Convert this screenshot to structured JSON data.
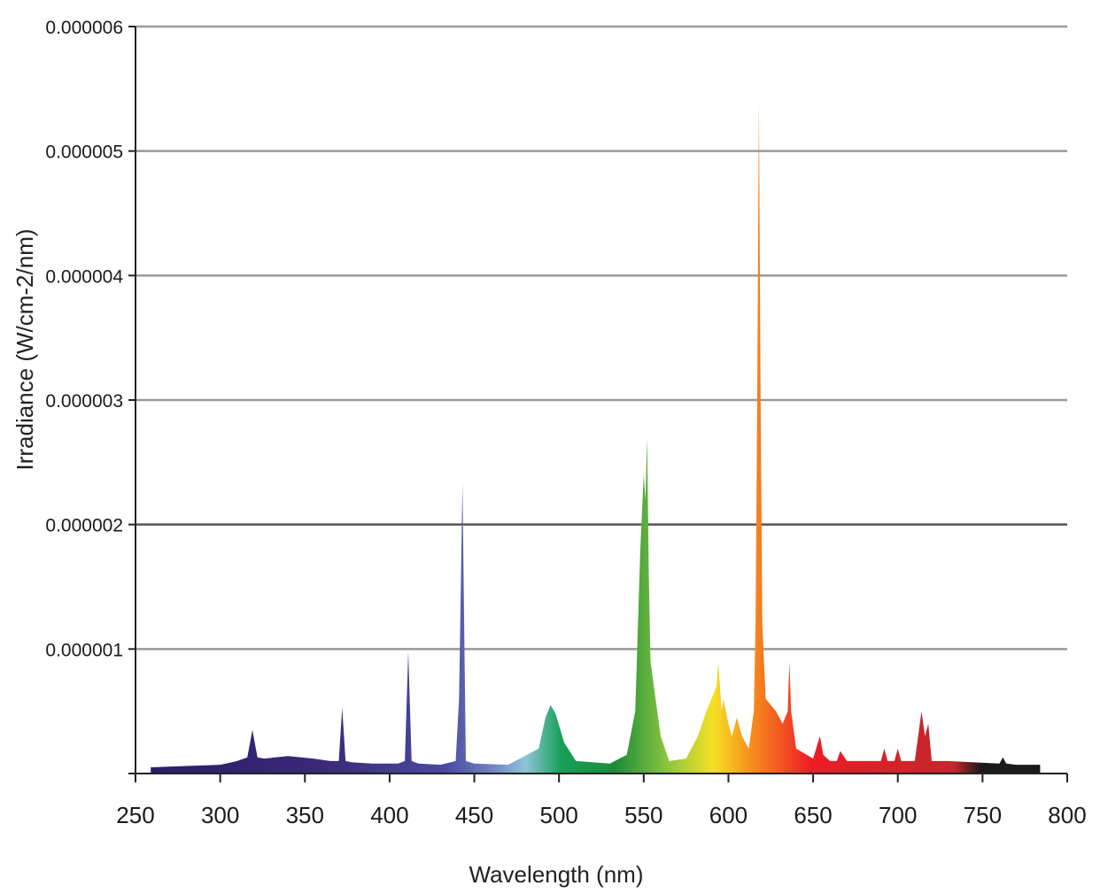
{
  "chart_data": {
    "type": "area",
    "xlabel": "Wavelength (nm)",
    "ylabel": "Irradiance (W/cm-2/nm)",
    "xlim": [
      250,
      800
    ],
    "ylim": [
      0,
      6e-06
    ],
    "x_ticks": [
      250,
      300,
      350,
      400,
      450,
      500,
      550,
      600,
      650,
      700,
      750,
      800
    ],
    "x_tick_labels": [
      "250",
      "300",
      "350",
      "400",
      "450",
      "500",
      "550",
      "600",
      "650",
      "700",
      "750",
      "800"
    ],
    "y_ticks": [
      0,
      1e-06,
      2e-06,
      3e-06,
      4e-06,
      5e-06,
      6e-06
    ],
    "y_tick_labels": [
      "",
      "0.000001",
      "0.000002",
      "0.000003",
      "0.000004",
      "0.000005",
      "0.000006"
    ],
    "grid": true,
    "fill": "visible-spectrum gradient",
    "series": [
      {
        "x": [
          259,
          280,
          300,
          310,
          316,
          319,
          322,
          326,
          340,
          355,
          365,
          370,
          372,
          374,
          378,
          390,
          405,
          409,
          411,
          413,
          417,
          430,
          439,
          441,
          443,
          445,
          450,
          470,
          488,
          492,
          495,
          498,
          503,
          510,
          530,
          540,
          545,
          548,
          550,
          551,
          552,
          553,
          554,
          556,
          560,
          565,
          575,
          582,
          587,
          590,
          593,
          594,
          596,
          597,
          600,
          602,
          605,
          608,
          612,
          615,
          616,
          617,
          618,
          619,
          620,
          622,
          625,
          628,
          632,
          635,
          636,
          637,
          640,
          650,
          654,
          656,
          660,
          664,
          666,
          670,
          680,
          690,
          692,
          694,
          698,
          700,
          702,
          710,
          712,
          714,
          716,
          718,
          720,
          730,
          745,
          760,
          762,
          764,
          770,
          784
        ],
        "y": [
          5e-08,
          6e-08,
          7e-08,
          1e-07,
          1.3e-07,
          3.5e-07,
          1.3e-07,
          1.2e-07,
          1.4e-07,
          1.2e-07,
          1e-07,
          1e-07,
          5.3e-07,
          1e-07,
          9e-08,
          8e-08,
          8e-08,
          1e-07,
          9.8e-07,
          1e-07,
          8e-08,
          7e-08,
          1e-07,
          6e-07,
          2.33e-06,
          1e-07,
          8e-08,
          7e-08,
          2e-07,
          4.5e-07,
          5.5e-07,
          4.8e-07,
          2.5e-07,
          1e-07,
          8e-08,
          1.5e-07,
          5e-07,
          1.8e-06,
          2.4e-06,
          2.2e-06,
          2.7e-06,
          1.6e-06,
          9e-07,
          7e-07,
          3e-07,
          1e-07,
          1.2e-07,
          3e-07,
          5e-07,
          6e-07,
          7e-07,
          9e-07,
          5e-07,
          6e-07,
          4e-07,
          3e-07,
          4.5e-07,
          3e-07,
          2e-07,
          5e-07,
          1.2e-06,
          3e-06,
          5.4e-06,
          3e-06,
          1.2e-06,
          6e-07,
          5.5e-07,
          5e-07,
          4e-07,
          5e-07,
          9e-07,
          5e-07,
          2e-07,
          1.2e-07,
          3e-07,
          1.5e-07,
          1e-07,
          1e-07,
          1.8e-07,
          1e-07,
          1e-07,
          1e-07,
          2e-07,
          1e-07,
          1e-07,
          2e-07,
          1e-07,
          1e-07,
          3e-07,
          5e-07,
          3e-07,
          4e-07,
          1e-07,
          1e-07,
          9e-08,
          8e-08,
          1.3e-07,
          8e-08,
          7e-08,
          7e-08
        ]
      }
    ],
    "colors": {
      "gridline": "#9a9a9a",
      "axis": "#222222",
      "gradient_stops": [
        "#2b1c6b",
        "#3a2b7a",
        "#4a4aa0",
        "#6e7fc2",
        "#8fc3d8",
        "#16a058",
        "#1b8c3a",
        "#8cc63f",
        "#f5e023",
        "#f7931e",
        "#ed1c24",
        "#c1272d",
        "#1a1a1a"
      ]
    }
  }
}
